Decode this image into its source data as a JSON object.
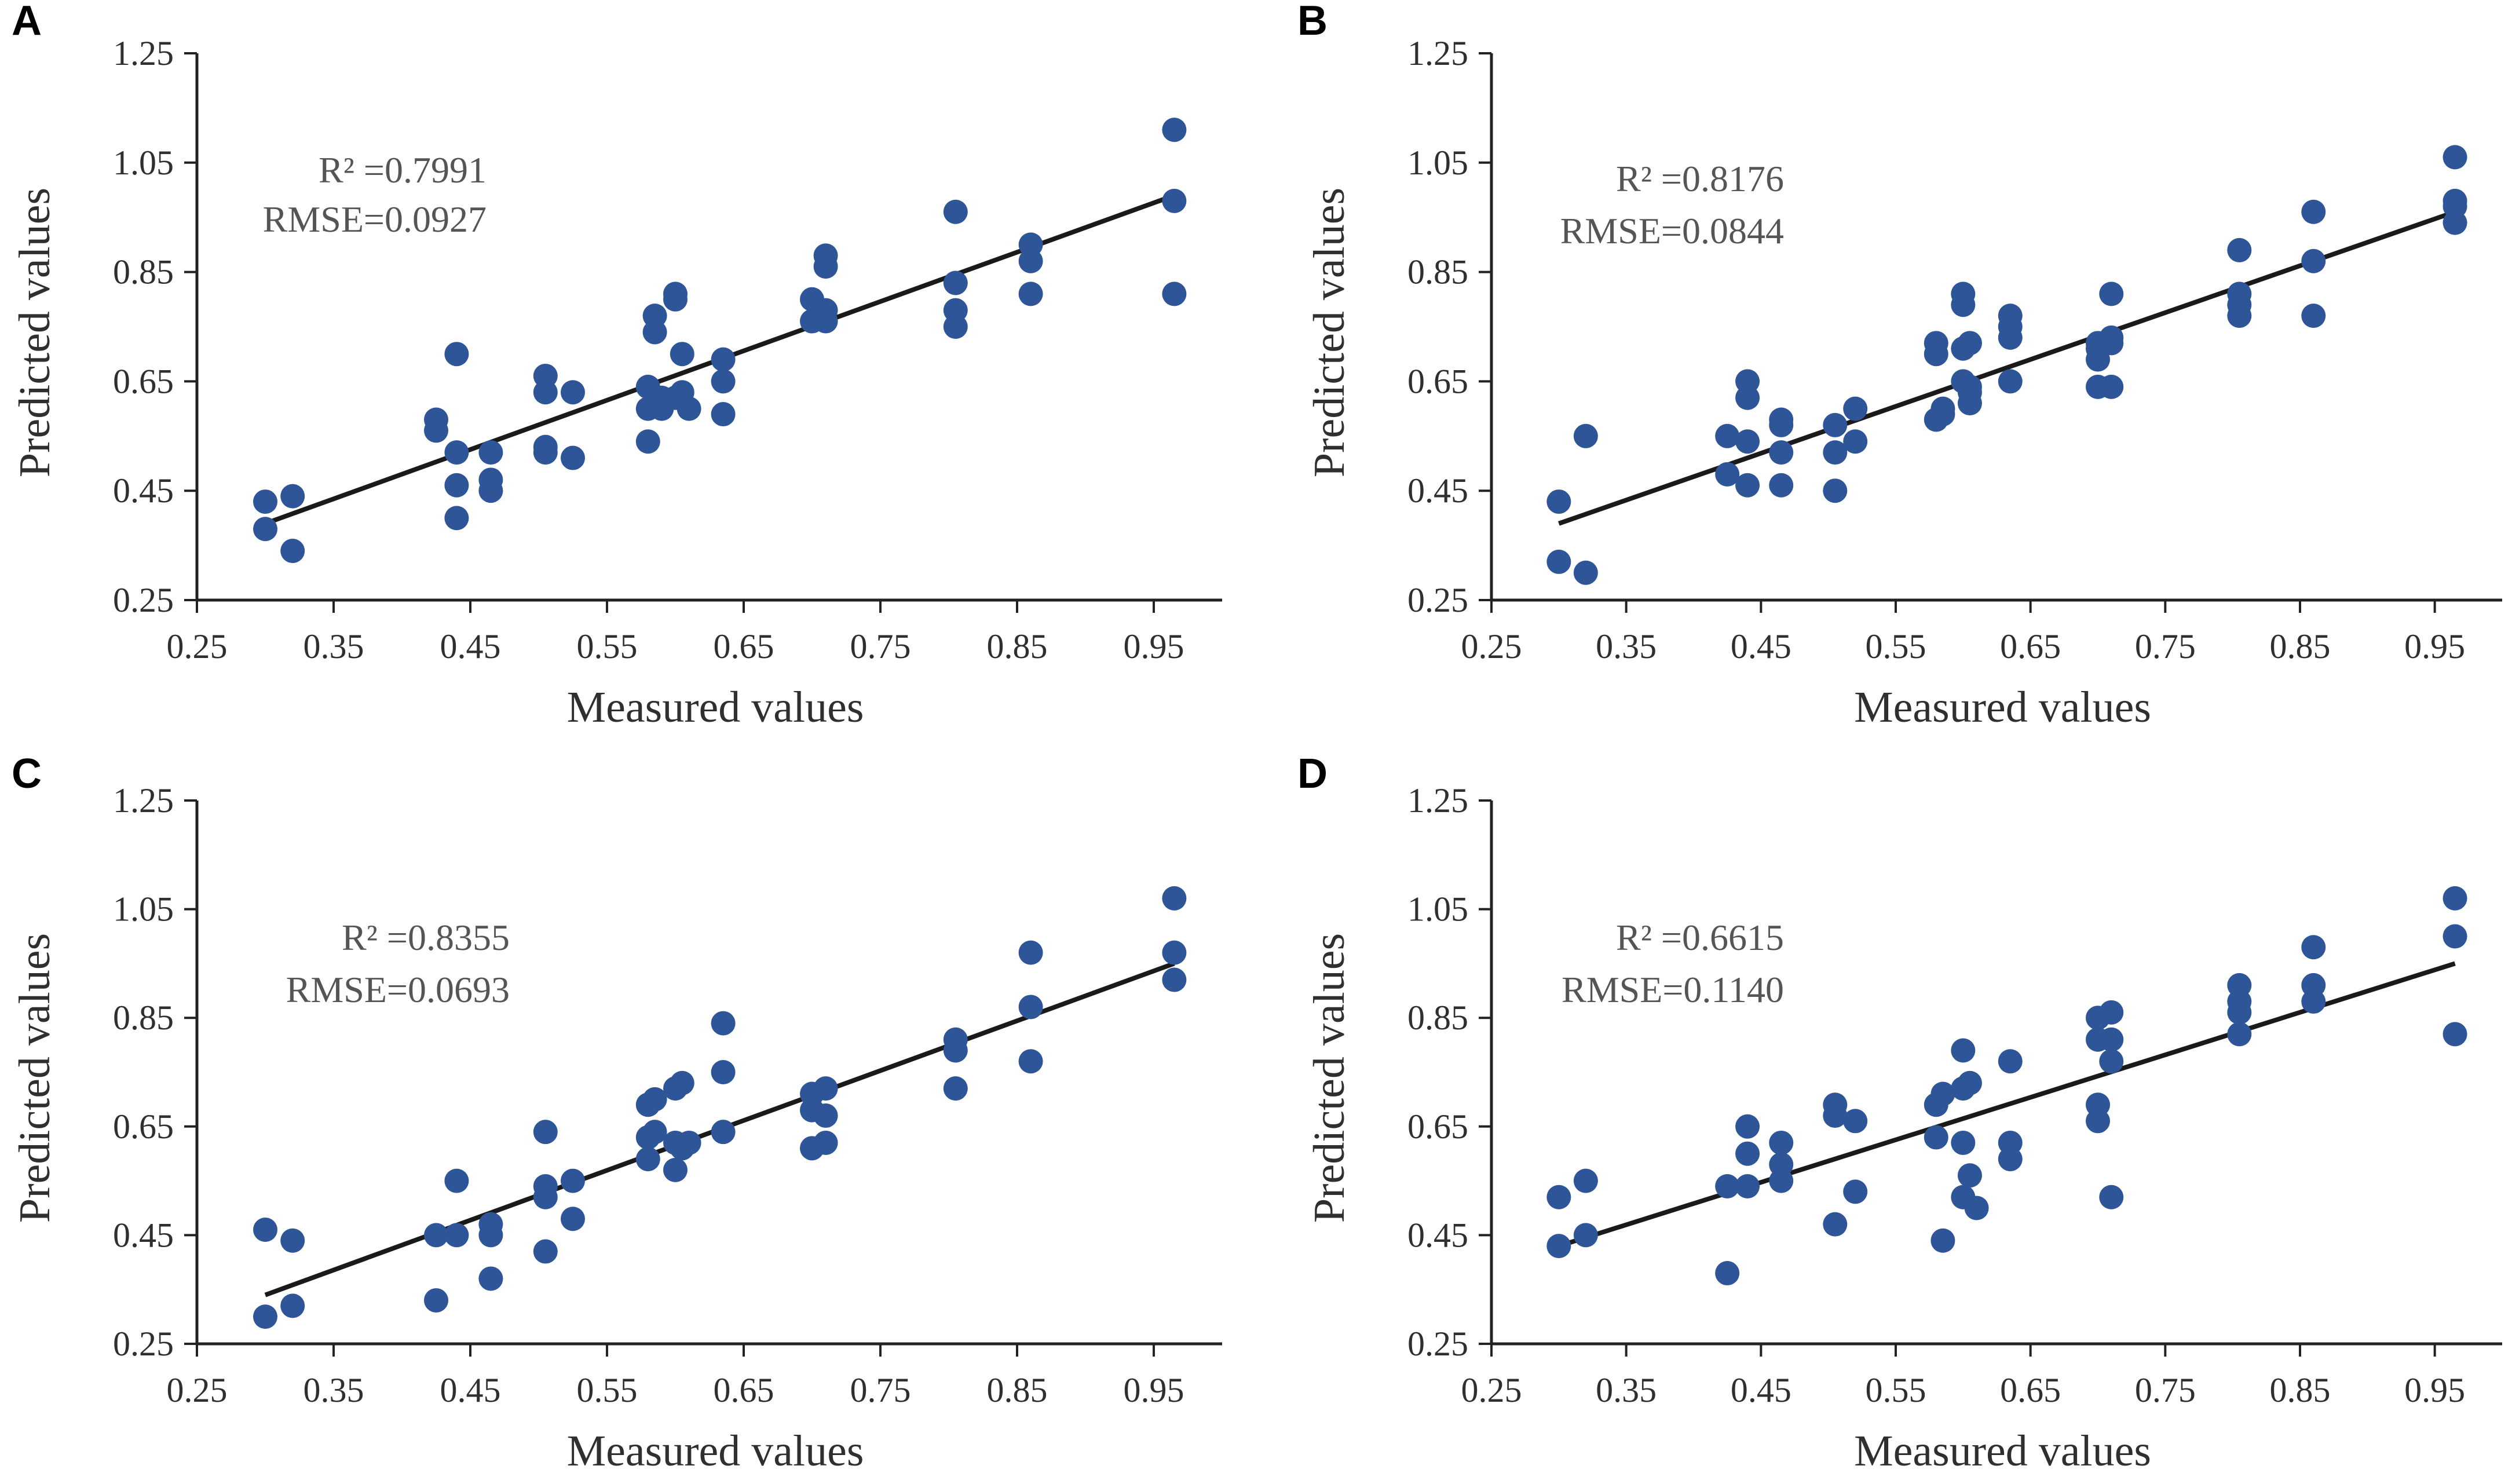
{
  "colors": {
    "point": "#2E5597",
    "line": "#1a1a1a",
    "axis": "#222222",
    "text": "#2f2f2f"
  },
  "chart_data": [
    {
      "type": "scatter",
      "panel": "A",
      "xlabel": "Measured values",
      "ylabel": "Predicted values",
      "xlim": [
        0.25,
        1.0
      ],
      "ylim": [
        0.25,
        1.25
      ],
      "xticks": [
        "0.25",
        "0.35",
        "0.45",
        "0.55",
        "0.65",
        "0.75",
        "0.85",
        "0.95"
      ],
      "yticks": [
        "0.25",
        "0.45",
        "0.65",
        "0.85",
        "1.05",
        "1.25"
      ],
      "r2_label": "R² =0.7991",
      "rmse_label": "RMSE=0.0927",
      "fit_line": {
        "x": [
          0.3,
          0.965
        ],
        "y": [
          0.39,
          0.99
        ]
      },
      "x": [
        0.3,
        0.3,
        0.32,
        0.32,
        0.425,
        0.425,
        0.44,
        0.44,
        0.44,
        0.44,
        0.465,
        0.465,
        0.465,
        0.505,
        0.505,
        0.505,
        0.505,
        0.525,
        0.525,
        0.58,
        0.58,
        0.58,
        0.585,
        0.585,
        0.59,
        0.59,
        0.6,
        0.6,
        0.6,
        0.605,
        0.605,
        0.61,
        0.635,
        0.635,
        0.635,
        0.7,
        0.7,
        0.71,
        0.71,
        0.71,
        0.71,
        0.805,
        0.805,
        0.805,
        0.805,
        0.86,
        0.86,
        0.86,
        0.965,
        0.965,
        0.965
      ],
      "y": [
        0.43,
        0.38,
        0.44,
        0.34,
        0.58,
        0.56,
        0.7,
        0.52,
        0.46,
        0.4,
        0.52,
        0.47,
        0.45,
        0.66,
        0.63,
        0.53,
        0.52,
        0.63,
        0.51,
        0.64,
        0.6,
        0.54,
        0.77,
        0.74,
        0.62,
        0.6,
        0.81,
        0.8,
        0.62,
        0.7,
        0.63,
        0.6,
        0.69,
        0.65,
        0.59,
        0.8,
        0.76,
        0.88,
        0.86,
        0.78,
        0.76,
        0.96,
        0.83,
        0.78,
        0.75,
        0.9,
        0.87,
        0.81,
        1.11,
        0.98,
        0.81
      ]
    },
    {
      "type": "scatter",
      "panel": "B",
      "xlabel": "Measured values",
      "ylabel": "Predicted values",
      "xlim": [
        0.25,
        1.0
      ],
      "ylim": [
        0.25,
        1.25
      ],
      "xticks": [
        "0.25",
        "0.35",
        "0.45",
        "0.55",
        "0.65",
        "0.75",
        "0.85",
        "0.95"
      ],
      "yticks": [
        "0.25",
        "0.45",
        "0.65",
        "0.85",
        "1.05",
        "1.25"
      ],
      "r2_label": "R² =0.8176",
      "rmse_label": "RMSE=0.0844",
      "fit_line": {
        "x": [
          0.3,
          0.965
        ],
        "y": [
          0.39,
          0.96
        ]
      },
      "x": [
        0.3,
        0.3,
        0.32,
        0.32,
        0.425,
        0.425,
        0.44,
        0.44,
        0.44,
        0.44,
        0.465,
        0.465,
        0.465,
        0.465,
        0.505,
        0.505,
        0.505,
        0.52,
        0.52,
        0.58,
        0.58,
        0.58,
        0.585,
        0.585,
        0.6,
        0.6,
        0.6,
        0.6,
        0.605,
        0.605,
        0.605,
        0.605,
        0.635,
        0.635,
        0.635,
        0.635,
        0.7,
        0.7,
        0.7,
        0.7,
        0.71,
        0.71,
        0.71,
        0.71,
        0.805,
        0.805,
        0.805,
        0.805,
        0.86,
        0.86,
        0.86,
        0.965,
        0.965,
        0.965,
        0.965
      ],
      "y": [
        0.43,
        0.32,
        0.55,
        0.3,
        0.55,
        0.48,
        0.65,
        0.62,
        0.54,
        0.46,
        0.58,
        0.57,
        0.52,
        0.46,
        0.57,
        0.52,
        0.45,
        0.6,
        0.54,
        0.72,
        0.7,
        0.58,
        0.6,
        0.59,
        0.81,
        0.79,
        0.71,
        0.65,
        0.72,
        0.64,
        0.63,
        0.61,
        0.77,
        0.75,
        0.73,
        0.65,
        0.72,
        0.71,
        0.69,
        0.64,
        0.81,
        0.73,
        0.72,
        0.64,
        0.89,
        0.81,
        0.79,
        0.77,
        0.96,
        0.87,
        0.77,
        1.06,
        0.98,
        0.97,
        0.94
      ]
    },
    {
      "type": "scatter",
      "panel": "C",
      "xlabel": "Measured values",
      "ylabel": "Predicted values",
      "xlim": [
        0.25,
        1.0
      ],
      "ylim": [
        0.25,
        1.25
      ],
      "xticks": [
        "0.25",
        "0.35",
        "0.45",
        "0.55",
        "0.65",
        "0.75",
        "0.85",
        "0.95"
      ],
      "yticks": [
        "0.25",
        "0.45",
        "0.65",
        "0.85",
        "1.05",
        "1.25"
      ],
      "r2_label": "R² =0.8355",
      "rmse_label": "RMSE=0.0693",
      "fit_line": {
        "x": [
          0.3,
          0.965
        ],
        "y": [
          0.34,
          0.95
        ]
      },
      "x": [
        0.3,
        0.3,
        0.32,
        0.32,
        0.425,
        0.425,
        0.44,
        0.44,
        0.465,
        0.465,
        0.465,
        0.505,
        0.505,
        0.505,
        0.505,
        0.525,
        0.525,
        0.58,
        0.58,
        0.58,
        0.585,
        0.585,
        0.6,
        0.6,
        0.6,
        0.605,
        0.605,
        0.61,
        0.635,
        0.635,
        0.635,
        0.7,
        0.7,
        0.7,
        0.71,
        0.71,
        0.71,
        0.805,
        0.805,
        0.805,
        0.86,
        0.86,
        0.86,
        0.965,
        0.965,
        0.965
      ],
      "y": [
        0.46,
        0.3,
        0.44,
        0.32,
        0.45,
        0.33,
        0.55,
        0.45,
        0.47,
        0.45,
        0.37,
        0.64,
        0.54,
        0.52,
        0.42,
        0.55,
        0.48,
        0.69,
        0.63,
        0.59,
        0.7,
        0.64,
        0.72,
        0.62,
        0.57,
        0.73,
        0.61,
        0.62,
        0.84,
        0.75,
        0.64,
        0.71,
        0.68,
        0.61,
        0.72,
        0.67,
        0.62,
        0.81,
        0.79,
        0.72,
        0.97,
        0.87,
        0.77,
        1.07,
        0.97,
        0.92
      ]
    },
    {
      "type": "scatter",
      "panel": "D",
      "xlabel": "Measured values",
      "ylabel": "Predicted values",
      "xlim": [
        0.25,
        1.0
      ],
      "ylim": [
        0.25,
        1.25
      ],
      "xticks": [
        "0.25",
        "0.35",
        "0.45",
        "0.55",
        "0.65",
        "0.75",
        "0.85",
        "0.95"
      ],
      "yticks": [
        "0.25",
        "0.45",
        "0.65",
        "0.85",
        "1.05",
        "1.25"
      ],
      "r2_label": "R² =0.6615",
      "rmse_label": "RMSE=0.1140",
      "fit_line": {
        "x": [
          0.3,
          0.965
        ],
        "y": [
          0.43,
          0.95
        ]
      },
      "x": [
        0.3,
        0.3,
        0.32,
        0.32,
        0.425,
        0.425,
        0.44,
        0.44,
        0.44,
        0.465,
        0.465,
        0.465,
        0.505,
        0.505,
        0.505,
        0.52,
        0.52,
        0.58,
        0.58,
        0.585,
        0.585,
        0.6,
        0.6,
        0.6,
        0.6,
        0.605,
        0.605,
        0.61,
        0.635,
        0.635,
        0.635,
        0.7,
        0.7,
        0.7,
        0.7,
        0.71,
        0.71,
        0.71,
        0.71,
        0.805,
        0.805,
        0.805,
        0.805,
        0.86,
        0.86,
        0.86,
        0.965,
        0.965,
        0.965
      ],
      "y": [
        0.52,
        0.43,
        0.55,
        0.45,
        0.54,
        0.38,
        0.65,
        0.6,
        0.54,
        0.62,
        0.58,
        0.55,
        0.69,
        0.67,
        0.47,
        0.66,
        0.53,
        0.69,
        0.63,
        0.71,
        0.44,
        0.79,
        0.72,
        0.62,
        0.52,
        0.73,
        0.56,
        0.5,
        0.77,
        0.62,
        0.59,
        0.85,
        0.81,
        0.69,
        0.66,
        0.86,
        0.81,
        0.77,
        0.52,
        0.91,
        0.88,
        0.86,
        0.82,
        0.98,
        0.91,
        0.88,
        1.07,
        1.0,
        0.82
      ]
    }
  ]
}
